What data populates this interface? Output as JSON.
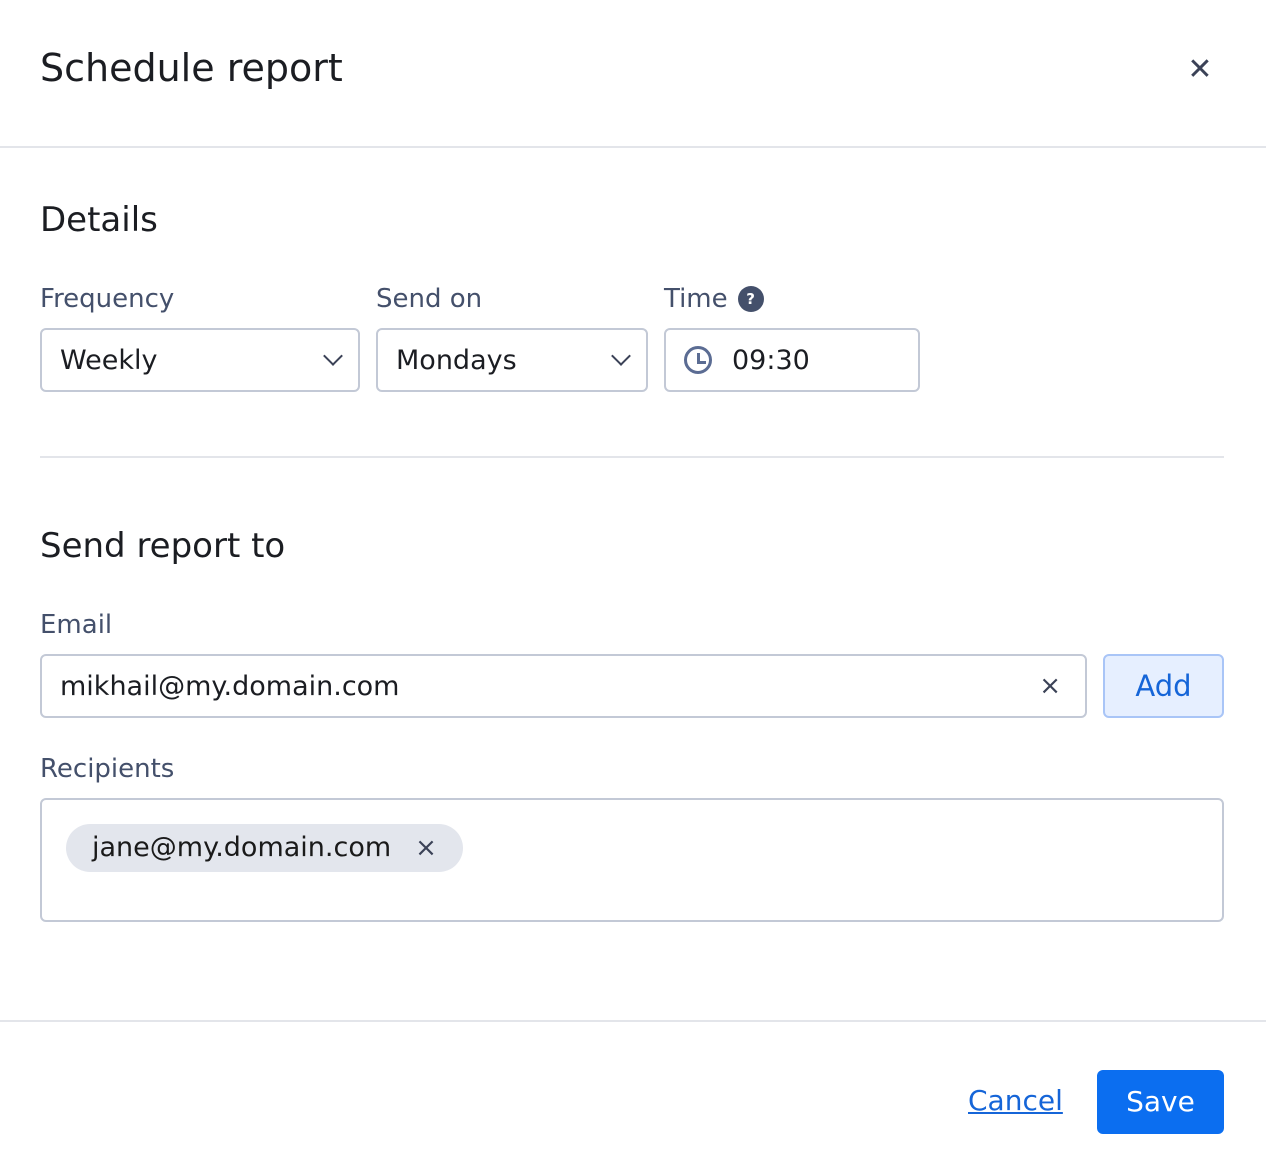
{
  "dialog": {
    "title": "Schedule report",
    "close_icon": "close-icon"
  },
  "details": {
    "heading": "Details",
    "frequency": {
      "label": "Frequency",
      "value": "Weekly"
    },
    "send_on": {
      "label": "Send on",
      "value": "Mondays"
    },
    "time": {
      "label": "Time",
      "help": "?",
      "value": "09:30"
    }
  },
  "send_to": {
    "heading": "Send report to",
    "email": {
      "label": "Email",
      "value": "mikhail@my.domain.com",
      "clear": "×"
    },
    "add_label": "Add",
    "recipients": {
      "label": "Recipients",
      "items": [
        {
          "email": "jane@my.domain.com",
          "remove": "×"
        }
      ]
    }
  },
  "footer": {
    "cancel_label": "Cancel",
    "save_label": "Save"
  },
  "colors": {
    "primary": "#0b6ef0",
    "link": "#1565d8",
    "label": "#44506b"
  }
}
